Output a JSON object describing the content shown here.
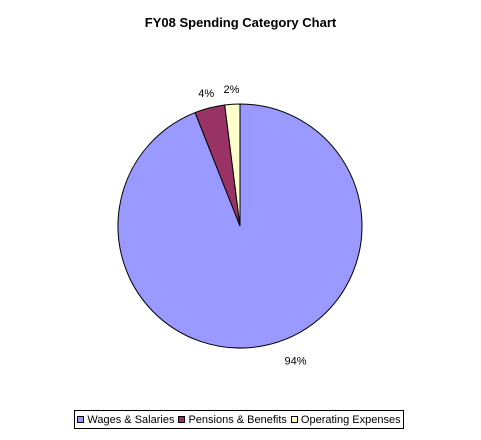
{
  "chart_data": {
    "type": "pie",
    "title": "FY08 Spending Category Chart",
    "slices": [
      {
        "label": "Wages & Salaries",
        "value": 94,
        "value_label": "94%",
        "color": "#9999FF"
      },
      {
        "label": "Pensions & Benefits",
        "value": 4,
        "value_label": "4%",
        "color": "#993366"
      },
      {
        "label": "Operating Expenses",
        "value": 2,
        "value_label": "2%",
        "color": "#FFFFCC"
      }
    ],
    "legend": "bottom"
  }
}
